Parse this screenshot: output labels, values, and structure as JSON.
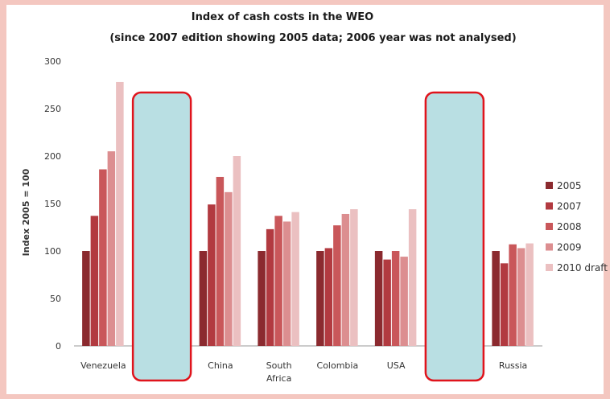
{
  "chart_data": {
    "type": "bar",
    "title": "Index of cash costs in the WEO",
    "subtitle": "(since 2007 edition showing 2005 data; 2006 year was not analysed)",
    "xlabel": "",
    "ylabel": "Index 2005 = 100",
    "ylim": [
      0,
      300
    ],
    "yticks": [
      0,
      50,
      100,
      150,
      200,
      250,
      300
    ],
    "grid": false,
    "legend_position": "right",
    "categories": [
      "Venezuela",
      "",
      "China",
      "South Africa",
      "Colombia",
      "USA",
      "",
      "Russia"
    ],
    "category_lines": [
      [
        "Venezuela"
      ],
      [],
      [
        "China"
      ],
      [
        "South",
        "Africa"
      ],
      [
        "Colombia"
      ],
      [
        "USA"
      ],
      [],
      [
        "Russia"
      ]
    ],
    "series": [
      {
        "name": "2005",
        "color": "#8b2a2f",
        "values": [
          100,
          null,
          100,
          100,
          100,
          100,
          null,
          100
        ]
      },
      {
        "name": "2007",
        "color": "#b23a40",
        "values": [
          137,
          null,
          149,
          123,
          103,
          91,
          null,
          87
        ]
      },
      {
        "name": "2008",
        "color": "#c9575a",
        "values": [
          186,
          null,
          178,
          137,
          127,
          100,
          null,
          107
        ]
      },
      {
        "name": "2009",
        "color": "#dc8e90",
        "values": [
          205,
          null,
          162,
          131,
          139,
          94,
          null,
          103
        ]
      },
      {
        "name": "2010 draft",
        "color": "#ebc0c1",
        "values": [
          278,
          null,
          200,
          141,
          144,
          144,
          null,
          108
        ]
      }
    ],
    "redacted_categories": [
      1,
      6
    ],
    "redaction_fill": "#b9dfe3",
    "redaction_border": "#e0141c"
  }
}
